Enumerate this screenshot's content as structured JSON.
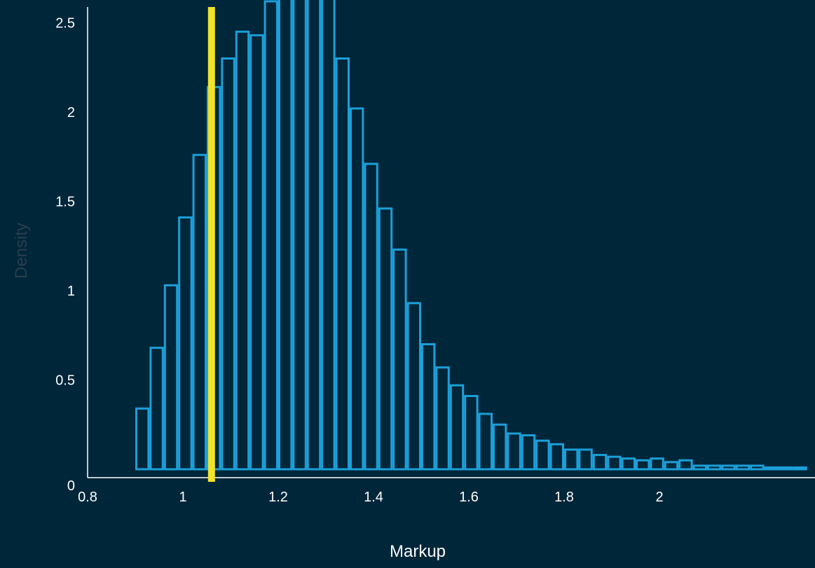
{
  "chart_data": {
    "type": "bar",
    "subtype": "histogram",
    "xlabel": "Markup",
    "ylabel": "Density",
    "xlim": [
      0.8,
      2.3
    ],
    "ylim": [
      0,
      2.7
    ],
    "xticks": [
      "0.8",
      "1",
      "1.2",
      "1.4",
      "1.6",
      "1.8",
      "2"
    ],
    "yticks": [
      "0",
      "0.5",
      "1",
      "1.5",
      "2",
      "2.5"
    ],
    "bin_width": 0.03,
    "bins_start": 0.9,
    "values": [
      0.34,
      0.68,
      1.03,
      1.41,
      1.76,
      2.14,
      2.3,
      2.45,
      2.43,
      2.62,
      2.71,
      2.78,
      2.82,
      2.71,
      2.3,
      2.02,
      1.71,
      1.46,
      1.23,
      0.93,
      0.7,
      0.57,
      0.47,
      0.41,
      0.31,
      0.25,
      0.2,
      0.19,
      0.16,
      0.14,
      0.11,
      0.11,
      0.08,
      0.07,
      0.06,
      0.05,
      0.06,
      0.04,
      0.05,
      0.02,
      0.02,
      0.02,
      0.02,
      0.02,
      0.01,
      0.01,
      0.01
    ],
    "reference_line": {
      "x": 1.06,
      "color": "#f0e32a"
    },
    "colors": {
      "background": "#00263a",
      "bar_edge": "#1c9fd8",
      "axis": "#ffffff",
      "tick_text": "#ffffff",
      "xlabel_text": "#ffffff",
      "ylabel_text": "#2a3f4b"
    }
  }
}
